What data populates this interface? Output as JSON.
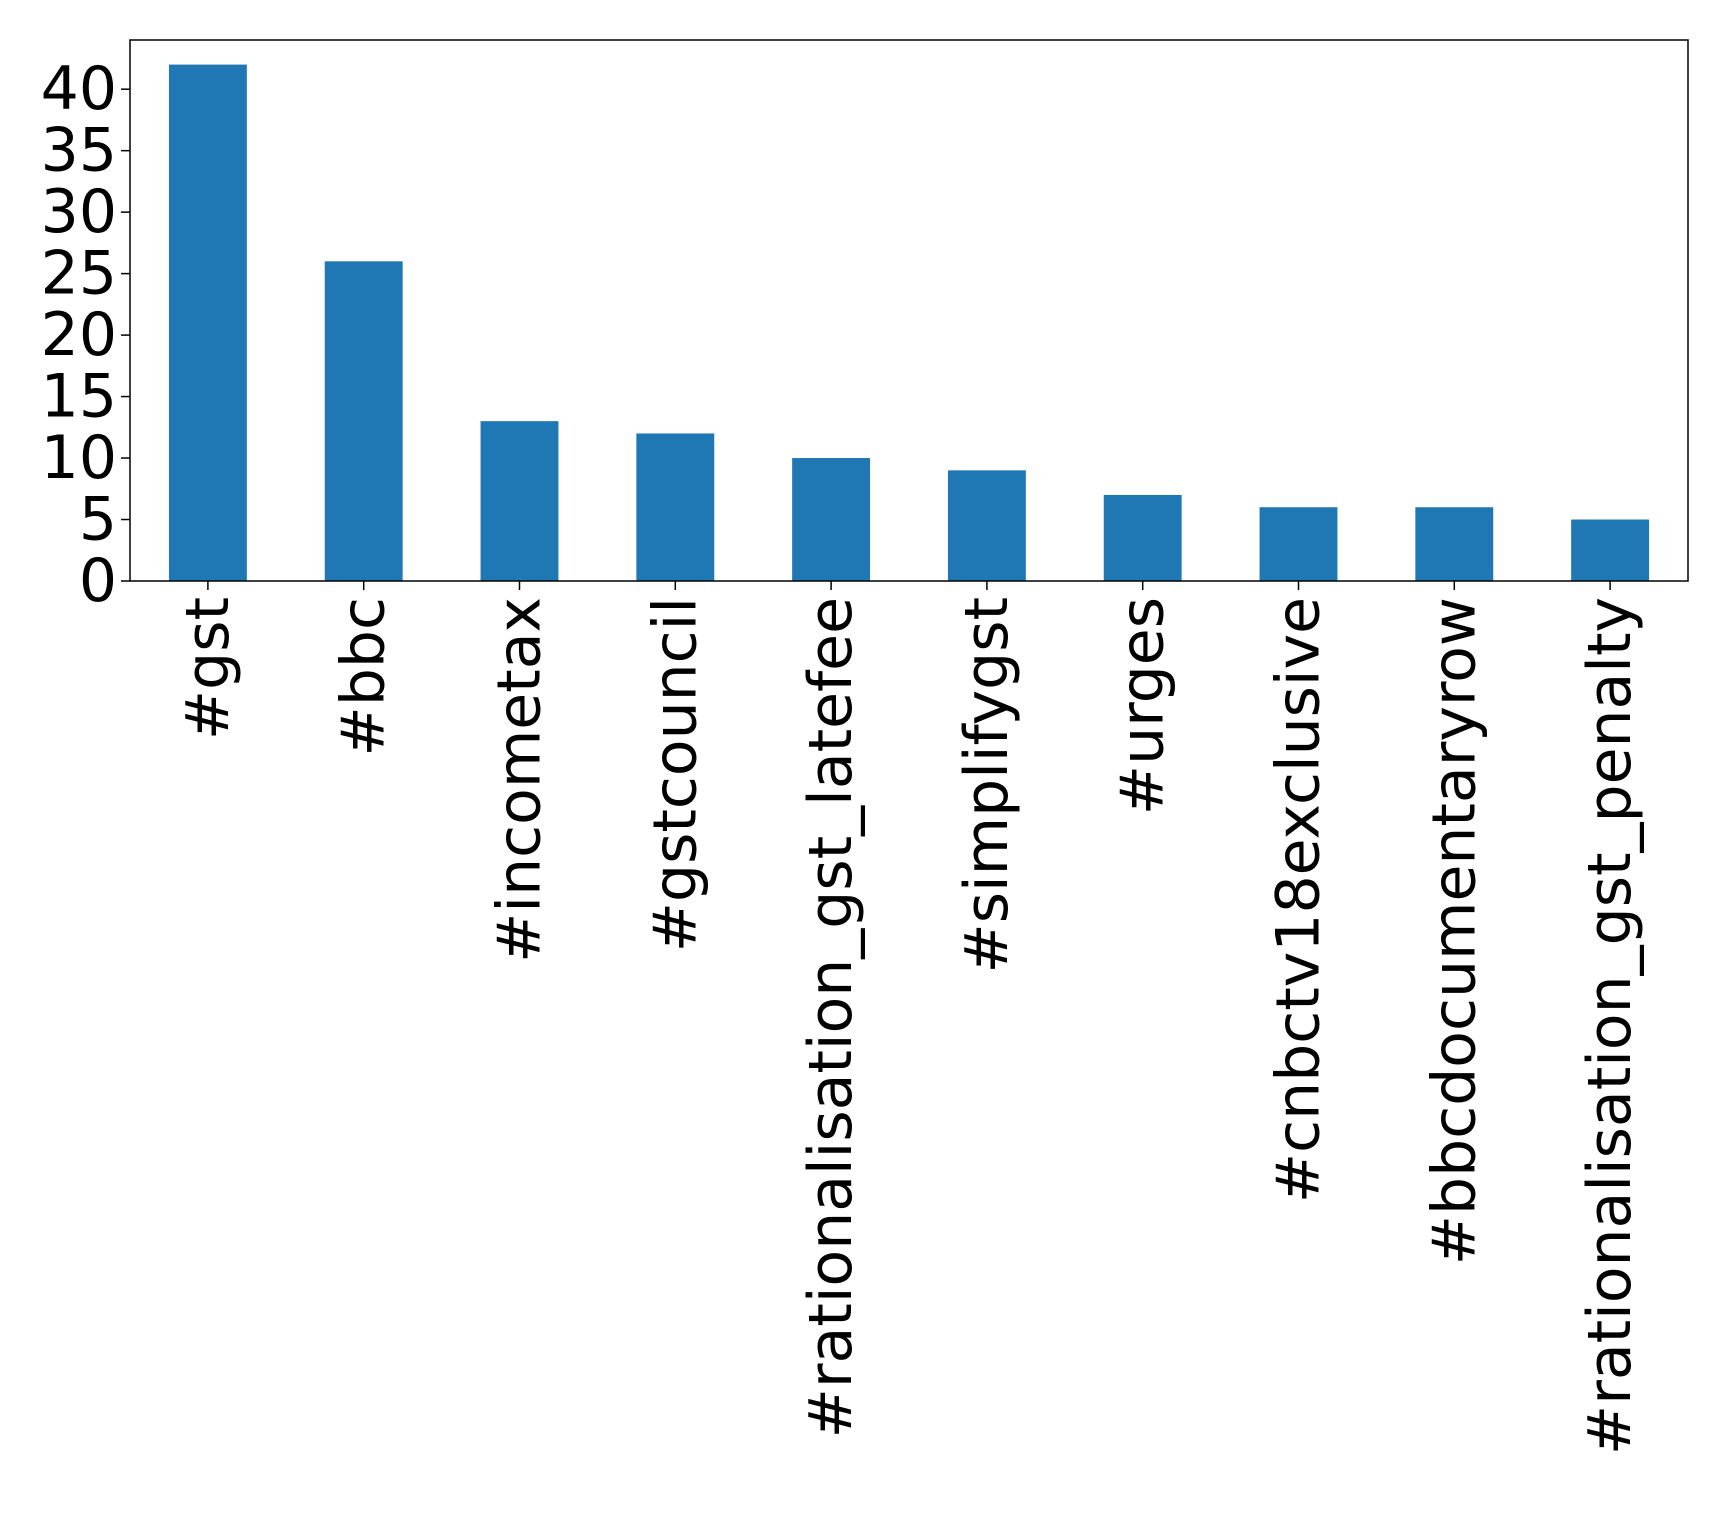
{
  "chart_data": {
    "type": "bar",
    "categories": [
      "#gst",
      "#bbc",
      "#incometax",
      "#gstcouncil",
      "#rationalisation_gst_latefee",
      "#simplifygst",
      "#urges",
      "#cnbctv18exclusive",
      "#bbcdocumentaryrow",
      "#rationalisation_gst_penalty"
    ],
    "values": [
      42,
      26,
      13,
      12,
      10,
      9,
      7,
      6,
      6,
      5
    ],
    "ylim": [
      0,
      44
    ],
    "yticks": [
      0,
      5,
      10,
      15,
      20,
      25,
      30,
      35,
      40
    ],
    "title": "",
    "xlabel": "",
    "ylabel": "",
    "grid": false,
    "bar_color": "#1f77b4"
  }
}
